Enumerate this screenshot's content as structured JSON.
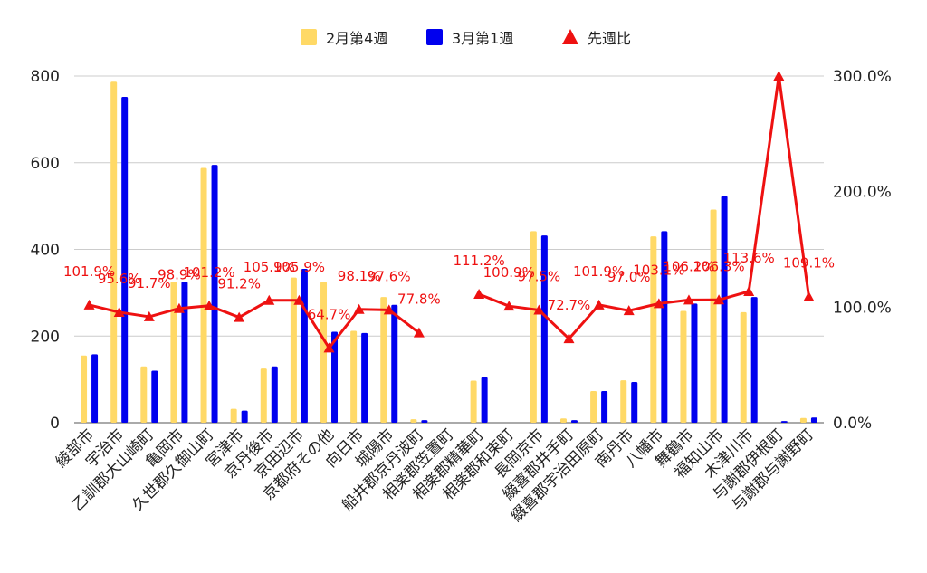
{
  "chart_data": {
    "type": "bar",
    "categories": [
      "綾部市",
      "宇治市",
      "乙訓郡大山崎町",
      "亀岡市",
      "久世郡久御山町",
      "宮津市",
      "京丹後市",
      "京田辺市",
      "京都府その他",
      "向日市",
      "城陽市",
      "船井郡京丹波町",
      "相楽郡笠置町",
      "相楽郡精華町",
      "相楽郡和束町",
      "長岡京市",
      "綴喜郡井手町",
      "綴喜郡宇治田原町",
      "南丹市",
      "八幡市",
      "舞鶴市",
      "福知山市",
      "木津川市",
      "与謝郡伊根町",
      "与謝郡与謝野町"
    ],
    "series": [
      {
        "name": "2月第4週",
        "axis": "left",
        "kind": "bar",
        "color": "#ffd966",
        "values": [
          155,
          787,
          130,
          325,
          588,
          32,
          125,
          335,
          325,
          212,
          290,
          8,
          0,
          97,
          0,
          442,
          10,
          73,
          98,
          430,
          258,
          492,
          255,
          0,
          11
        ]
      },
      {
        "name": "3月第1週",
        "axis": "left",
        "kind": "bar",
        "color": "#0000ee",
        "values": [
          158,
          752,
          120,
          325,
          595,
          28,
          130,
          355,
          210,
          207,
          272,
          6,
          0,
          105,
          0,
          432,
          6,
          73,
          94,
          442,
          275,
          523,
          290,
          4,
          12
        ]
      },
      {
        "name": "先週比",
        "axis": "right",
        "kind": "line",
        "color": "#ee1111",
        "values": [
          101.9,
          95.6,
          91.7,
          98.9,
          101.2,
          91.2,
          105.9,
          105.9,
          64.7,
          98.1,
          97.6,
          77.8,
          null,
          111.2,
          100.9,
          97.5,
          72.7,
          101.9,
          97.0,
          103.1,
          106.2,
          106.3,
          113.6,
          300.0,
          109.1
        ],
        "labels": [
          "101.9%",
          "95.6%",
          "91.7%",
          "98.9%",
          "101.2%",
          "91.2%",
          "105.9%",
          "105.9%",
          "64.7%",
          "98.1%",
          "97.6%",
          "77.8%",
          "",
          "111.2%",
          "100.9%",
          "97.5%",
          "72.7%",
          "101.9%",
          "97.0%",
          "103.1%",
          "106.2%",
          "106.3%",
          "113.6%",
          "",
          "109.1%"
        ]
      }
    ],
    "left_axis": {
      "min": 0,
      "max": 800,
      "ticks": [
        "0",
        "200",
        "400",
        "600",
        "800"
      ]
    },
    "right_axis": {
      "min": 0,
      "max": 300,
      "ticks": [
        "0.0%",
        "100.0%",
        "200.0%",
        "300.0%"
      ]
    },
    "legend_position": "top",
    "grid": true
  }
}
